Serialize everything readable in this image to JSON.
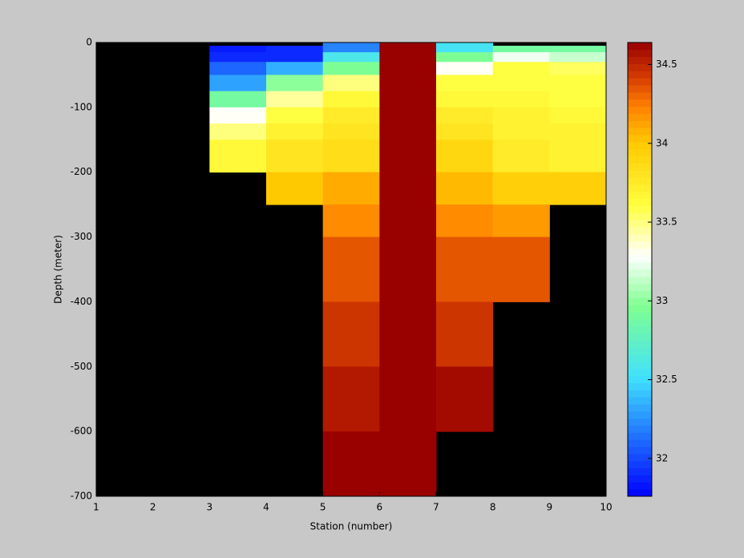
{
  "chart_data": {
    "type": "heatmap",
    "xlabel": "Station (number)",
    "ylabel": "Depth (meter)",
    "x_edges": [
      1,
      2,
      3,
      4,
      5,
      6,
      7,
      8,
      9,
      10
    ],
    "depth_edges": [
      0,
      -5,
      -15,
      -30,
      -50,
      -75,
      -100,
      -125,
      -150,
      -200,
      -250,
      -300,
      -400,
      -500,
      -600,
      -700
    ],
    "xlim": [
      1,
      10
    ],
    "xticks": [
      1,
      2,
      3,
      4,
      5,
      6,
      7,
      8,
      9,
      10
    ],
    "ylim": [
      -700,
      0
    ],
    "yticks": [
      -700,
      -600,
      -500,
      -400,
      -300,
      -200,
      -100,
      0
    ],
    "clim": [
      31.76,
      34.64
    ],
    "cticks": [
      32,
      32.5,
      33,
      33.5,
      34,
      34.5
    ],
    "colormap": [
      [
        0,
        "#0000ff"
      ],
      [
        0.26,
        "#40e0ff"
      ],
      [
        0.42,
        "#80ff90"
      ],
      [
        0.53,
        "#ffffff"
      ],
      [
        0.64,
        "#ffff40"
      ],
      [
        0.78,
        "#ffc800"
      ],
      [
        0.86,
        "#ff8000"
      ],
      [
        0.92,
        "#d84000"
      ],
      [
        1,
        "#990000"
      ]
    ],
    "background": "#000000",
    "z": [
      [
        null,
        null,
        null,
        null,
        32.2,
        34.64,
        32.55,
        null,
        null
      ],
      [
        null,
        null,
        31.85,
        31.9,
        32.2,
        34.64,
        32.55,
        32.9,
        32.9
      ],
      [
        null,
        null,
        31.9,
        31.9,
        32.6,
        34.64,
        32.95,
        33.25,
        33.15
      ],
      [
        null,
        null,
        32.1,
        32.35,
        32.95,
        34.64,
        33.3,
        33.6,
        33.55
      ],
      [
        null,
        null,
        32.3,
        33.0,
        33.5,
        34.64,
        33.6,
        33.6,
        33.6
      ],
      [
        null,
        null,
        32.9,
        33.45,
        33.65,
        34.64,
        33.65,
        33.65,
        33.6
      ],
      [
        null,
        null,
        33.3,
        33.6,
        33.75,
        34.64,
        33.75,
        33.7,
        33.65
      ],
      [
        null,
        null,
        33.5,
        33.7,
        33.8,
        34.64,
        33.8,
        33.7,
        33.7
      ],
      [
        null,
        null,
        33.65,
        33.8,
        33.85,
        34.64,
        33.9,
        33.75,
        33.7
      ],
      [
        null,
        null,
        null,
        34.0,
        34.1,
        34.64,
        34.05,
        33.95,
        33.95
      ],
      [
        null,
        null,
        null,
        null,
        34.2,
        34.64,
        34.2,
        34.15,
        null
      ],
      [
        null,
        null,
        null,
        null,
        34.35,
        34.64,
        34.35,
        34.35,
        null
      ],
      [
        null,
        null,
        null,
        null,
        34.45,
        34.64,
        34.45,
        null,
        null
      ],
      [
        null,
        null,
        null,
        null,
        34.55,
        34.64,
        34.6,
        null,
        null
      ],
      [
        null,
        null,
        null,
        null,
        34.64,
        34.64,
        null,
        null,
        null
      ]
    ]
  }
}
